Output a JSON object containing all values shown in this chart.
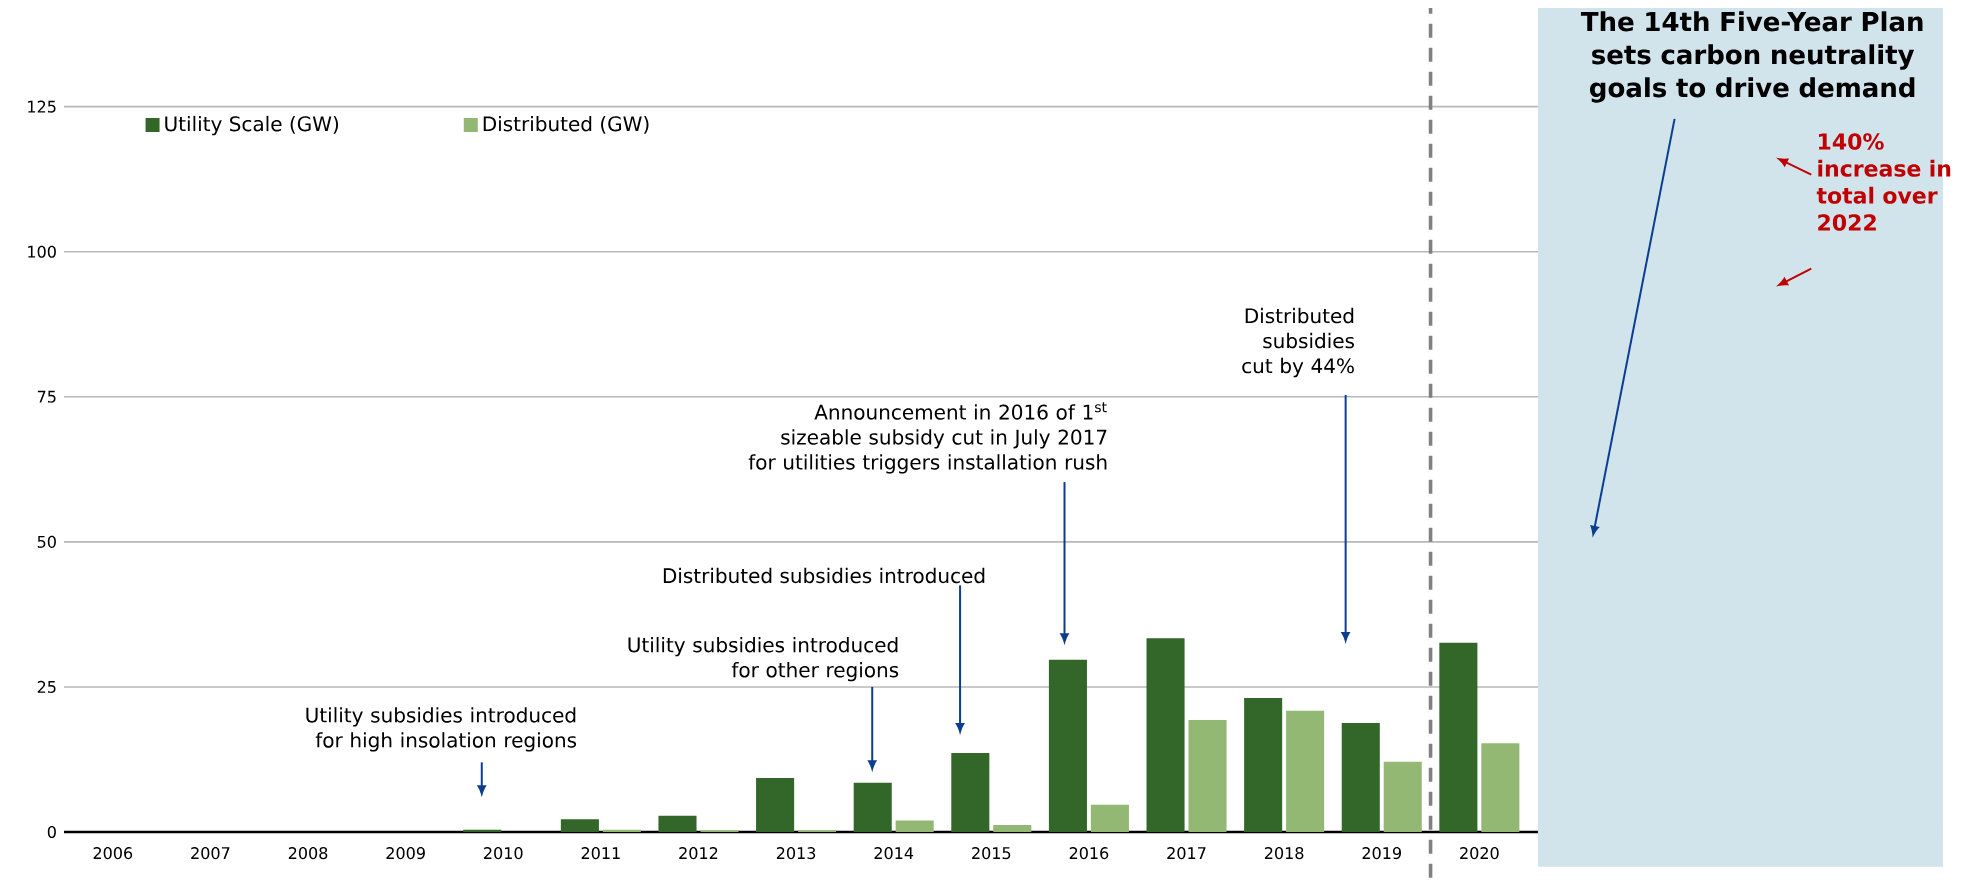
{
  "chart_data": {
    "type": "bar",
    "x": [
      2006,
      2007,
      2008,
      2009,
      2010,
      2011,
      2012,
      2013,
      2014,
      2015,
      2016,
      2017,
      2018,
      2019,
      2020
    ],
    "series": [
      {
        "name": "Utility Scale (GW)",
        "color": "#336629",
        "values": [
          0,
          0,
          0,
          0,
          0.4,
          2.2,
          2.8,
          9.3,
          8.5,
          13.6,
          29.7,
          33.4,
          23.1,
          18.8,
          32.6
        ]
      },
      {
        "name": "Distributed (GW)",
        "color": "#93b874",
        "values": [
          0,
          0,
          0,
          0,
          0,
          0.4,
          0.3,
          0.3,
          2.0,
          1.2,
          4.7,
          19.3,
          20.9,
          12.1,
          15.3
        ]
      }
    ],
    "xlim": [
      2005.5,
      2024.75
    ],
    "ylim": [
      0,
      142
    ],
    "xticks": [
      2006,
      2007,
      2008,
      2009,
      2010,
      2011,
      2012,
      2013,
      2014,
      2015,
      2016,
      2017,
      2018,
      2019,
      2020
    ],
    "yticks": [
      0,
      25,
      50,
      75,
      100,
      125
    ],
    "grid": "y",
    "legend": "top left",
    "ref_lines": [
      {
        "axis": "x",
        "value": 2019.5,
        "color": "#808080",
        "line_style": "dashed"
      }
    ],
    "bands": [
      {
        "axis": "x",
        "from": 2020.6,
        "to": 2024.75,
        "color": "#d1e3eb"
      }
    ],
    "annotations": [
      "Utility subsidies introduced for high insolation regions",
      "Utility subsidies introduced for other regions",
      "Distributed subsidies introduced",
      "Announcement in 2016 of 1$^{st}$ sizeable subsidy cut in July 2017 for utilities triggers installation rush",
      "Distributed subsidies cut by 44%",
      "The 14th Five-Year Plan sets carbon neutrality goals to drive demand",
      "140% increase in total over 2022"
    ]
  }
}
